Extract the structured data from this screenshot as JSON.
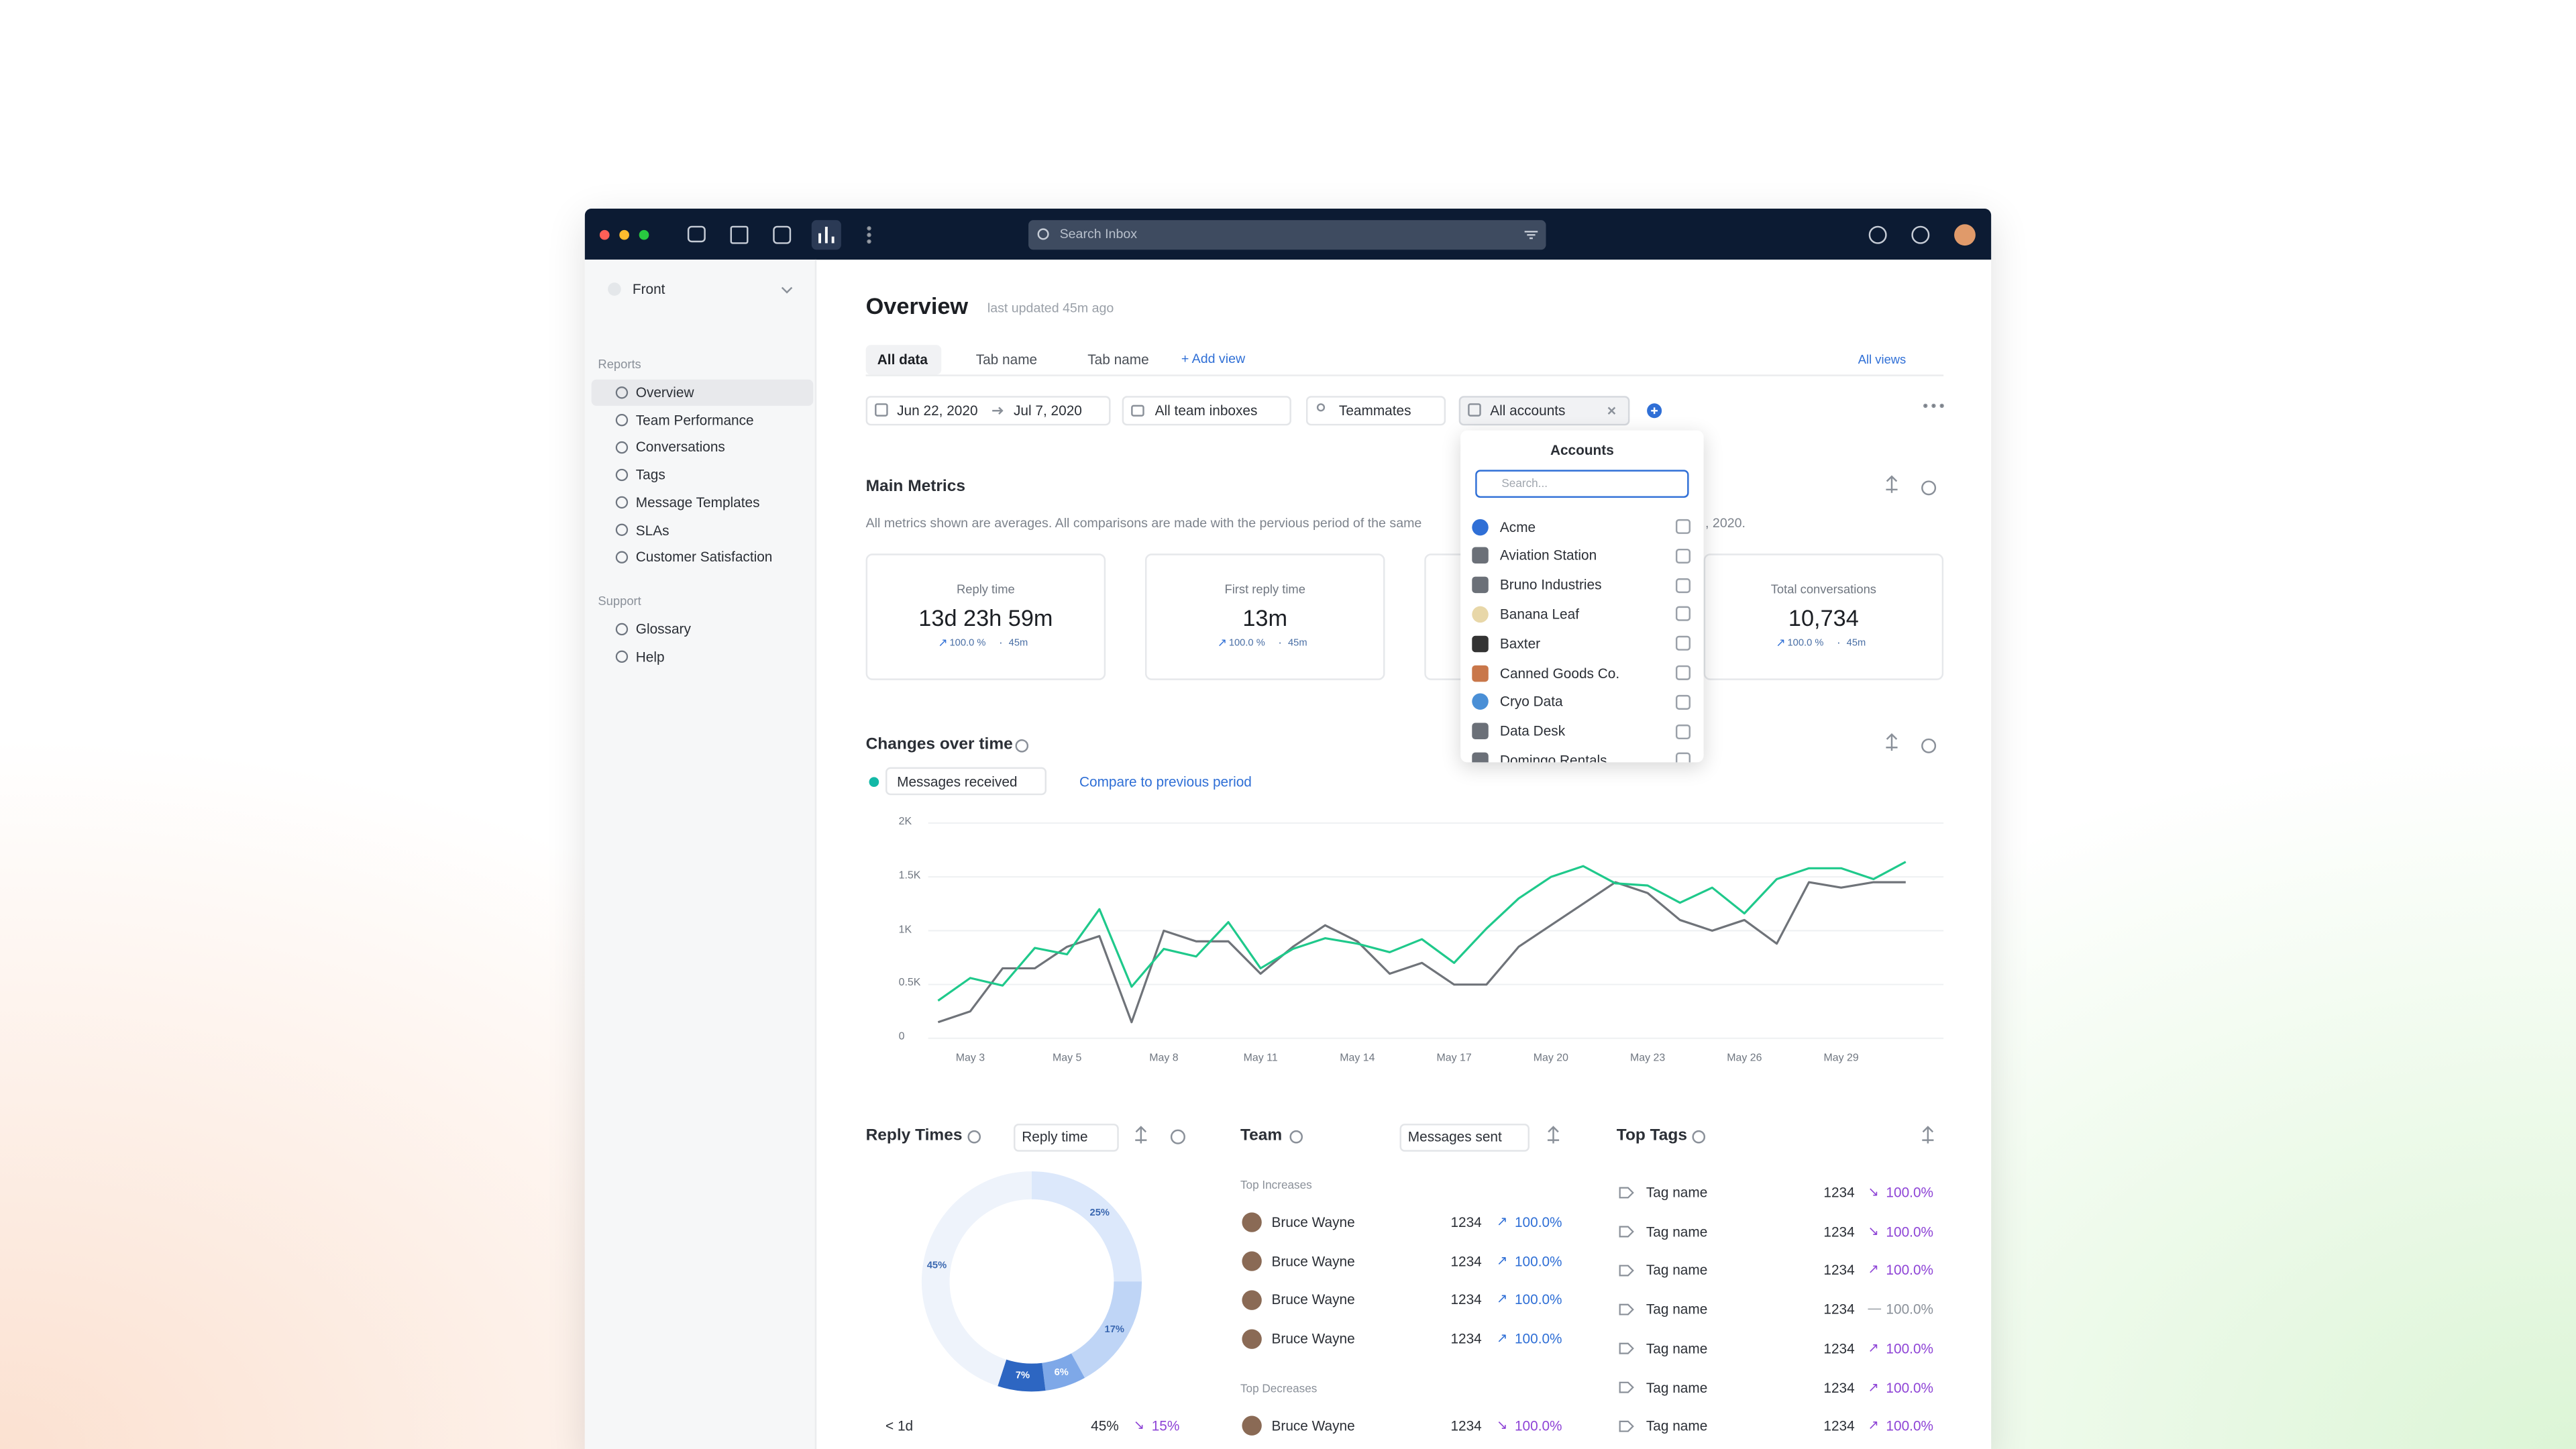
{
  "topbar": {
    "search_placeholder": "Search Inbox"
  },
  "sidebar": {
    "workspace": "Front",
    "sections": [
      {
        "title": "Reports",
        "items": [
          "Overview",
          "Team Performance",
          "Conversations",
          "Tags",
          "Message Templates",
          "SLAs",
          "Customer Satisfaction"
        ]
      },
      {
        "title": "Support",
        "items": [
          "Glossary",
          "Help"
        ]
      }
    ]
  },
  "header": {
    "title": "Overview",
    "updated": "last updated 45m ago"
  },
  "tabs": {
    "items": [
      "All data",
      "Tab name",
      "Tab name"
    ],
    "add": "+ Add view",
    "views": "All views"
  },
  "filters": {
    "date_from": "Jun 22, 2020",
    "date_to": "Jul 7, 2020",
    "inboxes": "All team inboxes",
    "teammates": "Teammates",
    "accounts": "All accounts"
  },
  "accounts_dropdown": {
    "title": "Accounts",
    "search_placeholder": "Search...",
    "items": [
      "Acme",
      "Aviation Station",
      "Bruno Industries",
      "Banana Leaf",
      "Baxter",
      "Canned Goods Co.",
      "Cryo Data",
      "Data Desk",
      "Domingo Rentals"
    ]
  },
  "main_metrics": {
    "title": "Main Metrics",
    "note_start": "All metrics shown are averages. All comparisons are made with the pervious period of the same",
    "note_end": ", 2020.",
    "cards": [
      {
        "label": "Reply time",
        "value": "13d 23h 59m",
        "change": "100.0 %",
        "period": "45m"
      },
      {
        "label": "First reply time",
        "value": "13m",
        "change": "100.0 %",
        "period": "45m"
      },
      {
        "label": "Total conversations",
        "value": "10,734",
        "change": "100.0 %",
        "period": "45m"
      }
    ]
  },
  "changes_over_time": {
    "title": "Changes over time",
    "metric": "Messages received",
    "compare": "Compare to previous period",
    "chart": {
      "type": "line",
      "categories": [
        null,
        "May 3",
        null,
        null,
        "May 5",
        null,
        null,
        "May 8",
        null,
        null,
        "May 11",
        null,
        null,
        "May 14",
        null,
        null,
        "May 17",
        null,
        null,
        "May 20",
        null,
        null,
        "May 23",
        null,
        null,
        "May 26",
        null,
        null,
        "May 29",
        null,
        null
      ],
      "series": [
        {
          "name": "Messages received",
          "color": "#1fc98b",
          "values": [
            350,
            560,
            490,
            840,
            780,
            1200,
            480,
            830,
            760,
            1080,
            650,
            830,
            930,
            880,
            800,
            920,
            700,
            1020,
            1300,
            1500,
            1600,
            1440,
            1420,
            1260,
            1400,
            1160,
            1480,
            1580,
            1580,
            1480,
            1640
          ]
        },
        {
          "color": "#6f7379",
          "values": [
            150,
            250,
            650,
            650,
            850,
            950,
            150,
            1000,
            900,
            900,
            600,
            850,
            1050,
            900,
            600,
            700,
            500,
            500,
            850,
            1050,
            1250,
            1450,
            1350,
            1100,
            1000,
            1100,
            880,
            1450,
            1400,
            1450,
            1450
          ]
        }
      ],
      "ylim": [
        0,
        2000
      ],
      "yticks": [
        0,
        {
          "value": 500,
          "label": "0.5K"
        },
        {
          "value": 1000,
          "label": "1K"
        },
        {
          "value": 1500,
          "label": "1.5K"
        },
        {
          "value": 2000,
          "label": "2K"
        }
      ],
      "grid": true
    }
  },
  "reply_times": {
    "title": "Reply Times",
    "metric": "Reply time",
    "chart": {
      "type": "pie",
      "values": [
        25,
        17,
        6,
        7,
        45
      ],
      "value_labels": [
        "25%",
        "17%",
        "6%",
        "7%",
        "45%"
      ],
      "colors": [
        "#dce8fb",
        "#bfd5f6",
        "#7ea8e8",
        "#2d66c2",
        "#eef3fb"
      ]
    },
    "rows": [
      {
        "label": "< 1d",
        "share": "45%",
        "change": "15%",
        "trend": "down"
      }
    ]
  },
  "team": {
    "title": "Team",
    "metric": "Messages sent",
    "groups": [
      {
        "title": "Top Increases",
        "rows": [
          {
            "name": "Bruce Wayne",
            "count": 1234,
            "change": "100.0%",
            "trend": "up"
          },
          {
            "name": "Bruce Wayne",
            "count": 1234,
            "change": "100.0%",
            "trend": "up"
          },
          {
            "name": "Bruce Wayne",
            "count": 1234,
            "change": "100.0%",
            "trend": "up"
          },
          {
            "name": "Bruce Wayne",
            "count": 1234,
            "change": "100.0%",
            "trend": "up"
          }
        ]
      },
      {
        "title": "Top Decreases",
        "rows": [
          {
            "name": "Bruce Wayne",
            "count": 1234,
            "change": "100.0%",
            "trend": "down"
          }
        ]
      }
    ]
  },
  "top_tags": {
    "title": "Top Tags",
    "rows": [
      {
        "name": "Tag name",
        "count": 1234,
        "change": "100.0%",
        "trend": "down"
      },
      {
        "name": "Tag name",
        "count": 1234,
        "change": "100.0%",
        "trend": "down"
      },
      {
        "name": "Tag name",
        "count": 1234,
        "change": "100.0%",
        "trend": "up"
      },
      {
        "name": "Tag name",
        "count": 1234,
        "change": "100.0%",
        "trend": "flat"
      },
      {
        "name": "Tag name",
        "count": 1234,
        "change": "100.0%",
        "trend": "up"
      },
      {
        "name": "Tag name",
        "count": 1234,
        "change": "100.0%",
        "trend": "up"
      },
      {
        "name": "Tag name",
        "count": 1234,
        "change": "100.0%",
        "trend": "up"
      }
    ]
  }
}
